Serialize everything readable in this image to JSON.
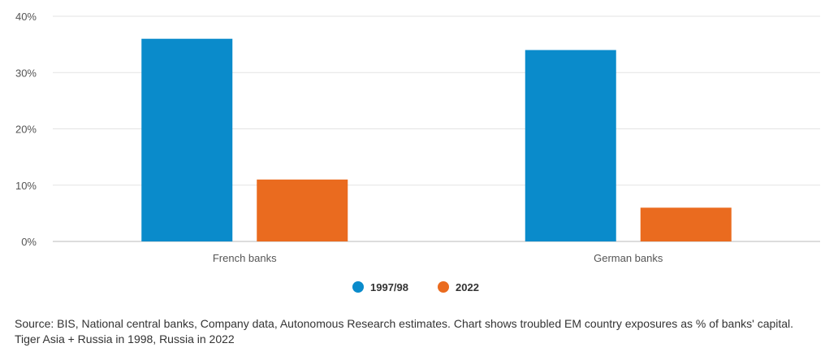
{
  "chart_data": {
    "type": "bar",
    "categories": [
      "French banks",
      "German banks"
    ],
    "series": [
      {
        "name": "1997/98",
        "values": [
          36,
          34
        ],
        "color": "#0A8BCB"
      },
      {
        "name": "2022",
        "values": [
          11,
          6
        ],
        "color": "#EA6B1F"
      }
    ],
    "ylim": [
      0,
      40
    ],
    "yticks": [
      0,
      10,
      20,
      30,
      40
    ],
    "ytick_labels": [
      "0%",
      "10%",
      "20%",
      "30%",
      "40%"
    ],
    "grid": true,
    "legend_position": "bottom-center"
  },
  "source_note": "Source: BIS, National central banks, Company data, Autonomous Research estimates. Chart shows troubled EM country exposures as % of banks' capital. Tiger Asia + Russia in 1998, Russia in 2022"
}
